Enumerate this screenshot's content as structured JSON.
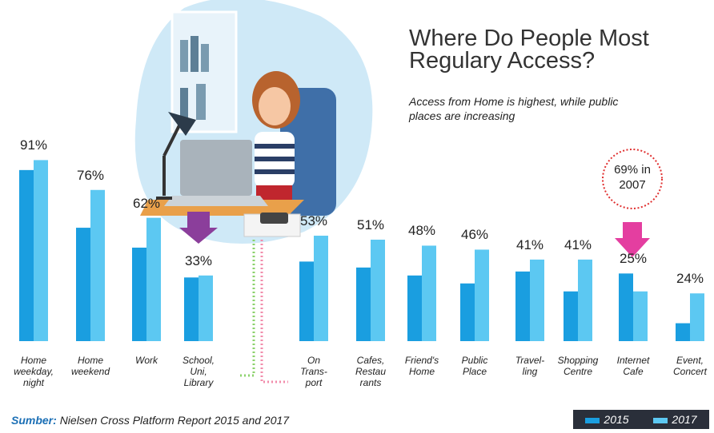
{
  "chart_data": {
    "type": "bar",
    "title": "Where Do People Most Regulary Access?",
    "subtitle": "Access from Home is highest, while public places are increasing",
    "categories": [
      "Home\nweekday,\nnight",
      "Home\nweekend",
      "Work",
      "School,\nUni,\nLibrary",
      "On\nTrans-\nport",
      "Cafes,\nRestau\nrants",
      "Friend's\nHome",
      "Public\nPlace",
      "Travel-\nling",
      "Shopping\nCentre",
      "Internet\nCafe",
      "Event,\nConcert"
    ],
    "series": [
      {
        "name": "2015",
        "color": "#1a9ee0",
        "values": [
          86,
          57,
          47,
          32,
          40,
          37,
          33,
          29,
          35,
          25,
          34,
          9
        ]
      },
      {
        "name": "2017",
        "color": "#5cc8f2",
        "values": [
          91,
          76,
          62,
          33,
          53,
          51,
          48,
          46,
          41,
          41,
          25,
          24
        ],
        "value_labels": [
          "91%",
          "76%",
          "62%",
          "33%",
          "53%",
          "51%",
          "48%",
          "46%",
          "41%",
          "41%",
          "25%",
          "24%"
        ]
      }
    ],
    "annotation": "69% in 2007",
    "source_label": "Sumber:",
    "source": "Nielsen Cross Platform Report 2015 and 2017"
  }
}
